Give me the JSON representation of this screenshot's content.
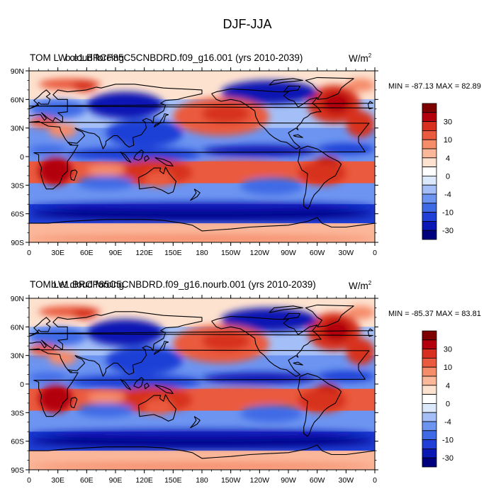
{
  "main_title": "DJF-JJA",
  "units_label": "W/m",
  "units_exponent": "2",
  "colorbar_colors": [
    "#00007f",
    "#0a18b4",
    "#1f3fd6",
    "#3f6ae6",
    "#6c94f0",
    "#a4bff7",
    "#dce8fb",
    "#ffffff",
    "#fde2d0",
    "#fbb79a",
    "#f58c6a",
    "#ea5a3e",
    "#d7301f",
    "#b3000c",
    "#7f0000"
  ],
  "colorbar_tick_labels": [
    "30",
    "10",
    "4",
    "0",
    "-4",
    "-10",
    "-30"
  ],
  "lat_labels": [
    "90N",
    "60N",
    "30N",
    "0",
    "30S",
    "60S",
    "90S"
  ],
  "lon_labels": [
    "0",
    "30E",
    "60E",
    "90E",
    "120E",
    "150E",
    "180",
    "150W",
    "120W",
    "90W",
    "60W",
    "30W",
    "0"
  ],
  "panels": [
    {
      "overlap_title_a": "TOM LW cloud forcing",
      "overlap_title_b": "b.e1.BRCP85C5CNBDRD.f09_g16.001 (yrs 2010-2039)",
      "min_max": "MIN = -87.13  MAX =  82.89"
    },
    {
      "overlap_title_a": "TOM LW cloud forcing",
      "overlap_title_b": "b.e1.BRCP85C5CNBDRD.f09_g16.nourb.001 (yrs 2010-2039)",
      "min_max": "MIN = -85.37  MAX =  83.81"
    }
  ],
  "chart_data": [
    {
      "type": "heatmap",
      "title": "TOM LW cloud forcing / b.e1.BRCP85C5CNBDRD.f09_g16.001 (yrs 2010-2039)",
      "season": "DJF-JJA",
      "units": "W/m2",
      "min": -87.13,
      "max": 82.89,
      "xlim": [
        0,
        360
      ],
      "ylim": [
        -90,
        90
      ],
      "contour_levels": [
        -40,
        -30,
        -20,
        -10,
        -6,
        -4,
        -2,
        0,
        2,
        4,
        6,
        10,
        20,
        30,
        40
      ]
    },
    {
      "type": "heatmap",
      "title": "TOM LW cloud forcing / b.e1.BRCP85C5CNBDRD.f09_g16.nourb.001 (yrs 2010-2039)",
      "season": "DJF-JJA",
      "units": "W/m2",
      "min": -85.37,
      "max": 83.81,
      "xlim": [
        0,
        360
      ],
      "ylim": [
        -90,
        90
      ],
      "contour_levels": [
        -40,
        -30,
        -20,
        -10,
        -6,
        -4,
        -2,
        0,
        2,
        4,
        6,
        10,
        20,
        30,
        40
      ]
    }
  ]
}
